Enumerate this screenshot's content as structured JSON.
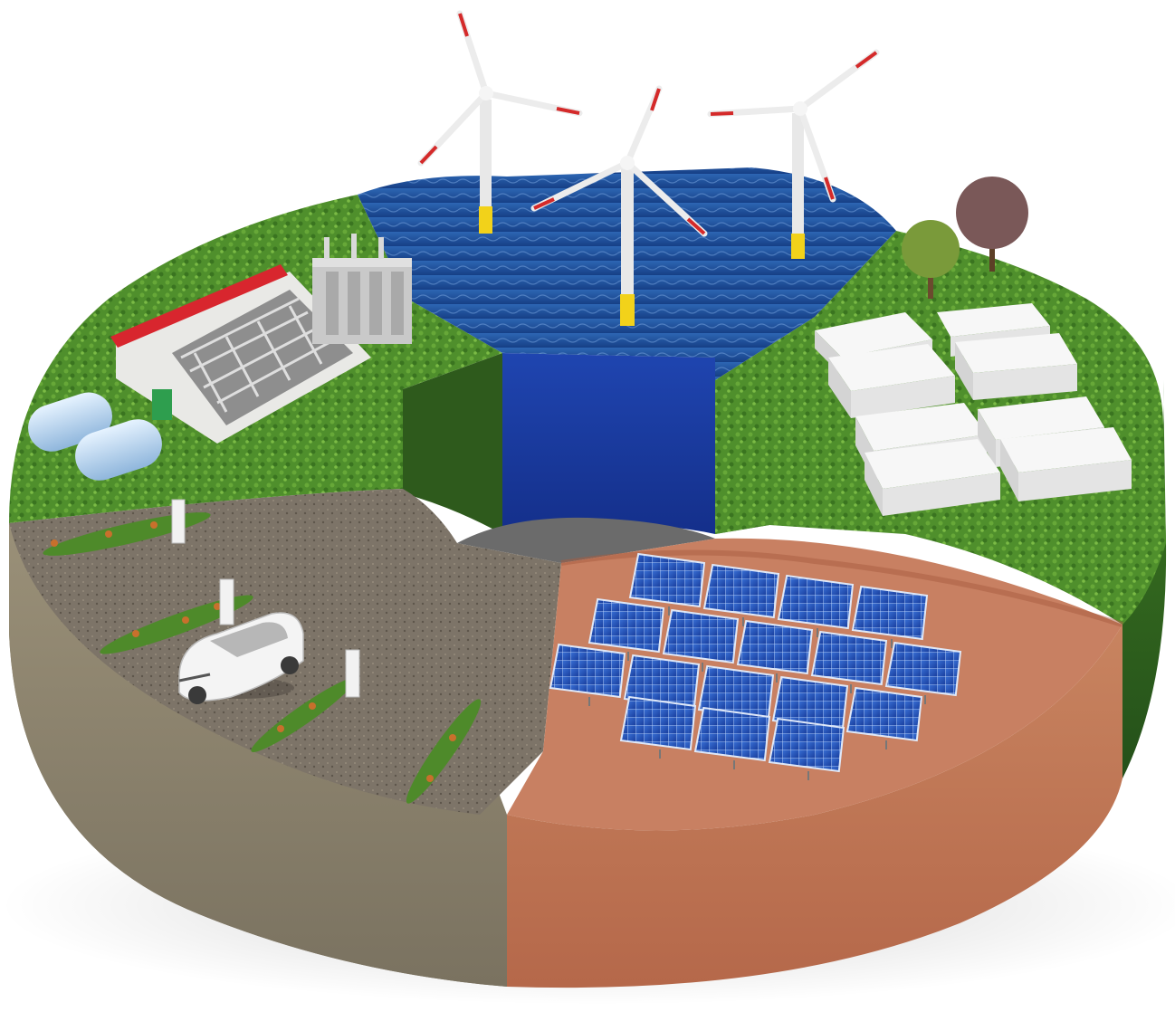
{
  "scene": {
    "sections": [
      {
        "id": "hydrogen-plant",
        "items": [
          "electrolyzer-building",
          "transformer",
          "hydrogen-tank",
          "hydrogen-tank"
        ]
      },
      {
        "id": "offshore-wind",
        "items": [
          "wind-turbine",
          "wind-turbine",
          "wind-turbine"
        ]
      },
      {
        "id": "battery-storage",
        "items": [
          "battery-container",
          "battery-container",
          "battery-container",
          "battery-container",
          "battery-container",
          "battery-container",
          "battery-container",
          "battery-container"
        ]
      },
      {
        "id": "solar-farm",
        "items": [
          "solar-panel-array"
        ]
      },
      {
        "id": "ev-charging",
        "items": [
          "electric-car",
          "charging-station",
          "charging-station",
          "charging-station",
          "charging-station"
        ]
      }
    ],
    "colors": {
      "grass": "#4f8f2c",
      "grass_dark": "#2f6018",
      "water": "#1e4f9a",
      "water_side": "#1a3fa8",
      "gravel": "#7d7468",
      "gravel_side": "#8c8470",
      "clay": "#c07a5a",
      "clay_side": "#b8704e",
      "solar_cell": "#1f4fb8",
      "roof_red": "#d8262e",
      "turbine_tip": "#d42a2a",
      "turbine_base": "#f2d21a",
      "container": "#eeeeee"
    }
  }
}
